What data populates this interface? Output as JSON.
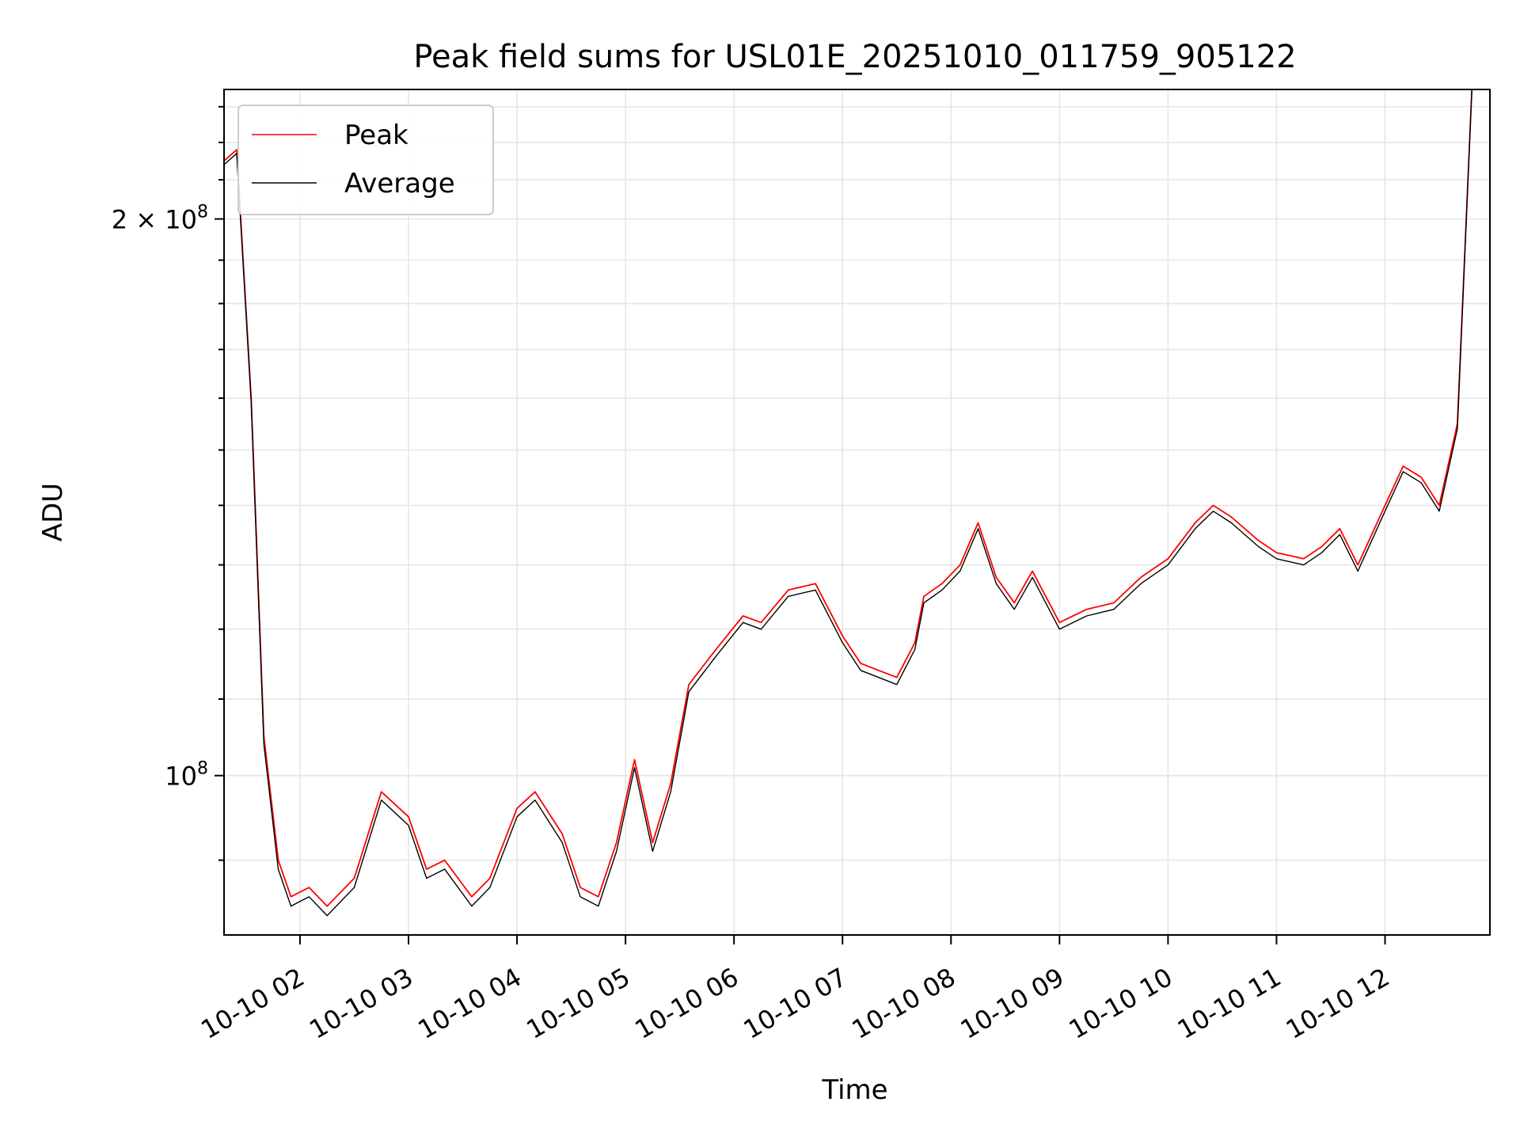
{
  "chart_data": {
    "type": "line",
    "title": "Peak field sums for USL01E_20251010_011759_905122",
    "xlabel": "Time",
    "ylabel": "ADU",
    "yscale": "log",
    "grid": true,
    "legend_placement": "top-left",
    "xlim": [
      "2025-10-10 01:18",
      "2025-10-10 12:58"
    ],
    "ylim": [
      82000000,
      235000000
    ],
    "x_ticks": [
      "10-10 02",
      "10-10 03",
      "10-10 04",
      "10-10 05",
      "10-10 06",
      "10-10 07",
      "10-10 08",
      "10-10 09",
      "10-10 10",
      "10-10 11",
      "10-10 12"
    ],
    "y_ticks": [
      {
        "value": 100000000,
        "base": "10",
        "exp": "8"
      },
      {
        "value": 200000000,
        "base": "2 × 10",
        "exp": "8"
      }
    ],
    "x": [
      "01:18",
      "01:25",
      "01:33",
      "01:40",
      "01:48",
      "01:55",
      "02:05",
      "02:15",
      "02:30",
      "02:45",
      "03:00",
      "03:10",
      "03:20",
      "03:35",
      "03:45",
      "04:00",
      "04:10",
      "04:25",
      "04:35",
      "04:45",
      "04:55",
      "05:05",
      "05:15",
      "05:25",
      "05:35",
      "05:50",
      "06:05",
      "06:15",
      "06:30",
      "06:45",
      "07:00",
      "07:10",
      "07:20",
      "07:30",
      "07:40",
      "07:45",
      "07:55",
      "08:05",
      "08:15",
      "08:25",
      "08:35",
      "08:45",
      "09:00",
      "09:15",
      "09:30",
      "09:45",
      "10:00",
      "10:15",
      "10:25",
      "10:35",
      "10:50",
      "11:00",
      "11:15",
      "11:25",
      "11:35",
      "11:45",
      "12:00",
      "12:10",
      "12:20",
      "12:30",
      "12:40",
      "12:48"
    ],
    "series": [
      {
        "name": "Peak",
        "color": "#ff0000",
        "values": [
          215000000,
          218000000,
          160000000,
          105000000,
          90000000,
          86000000,
          87000000,
          85000000,
          88000000,
          98000000,
          95000000,
          89000000,
          90000000,
          86000000,
          88000000,
          96000000,
          98000000,
          93000000,
          87000000,
          86000000,
          92000000,
          102000000,
          92000000,
          99000000,
          112000000,
          117000000,
          122000000,
          121000000,
          126000000,
          127000000,
          119000000,
          115000000,
          114000000,
          113000000,
          118000000,
          125000000,
          127000000,
          130000000,
          137000000,
          128000000,
          124000000,
          129000000,
          121000000,
          123000000,
          124000000,
          128000000,
          131000000,
          137000000,
          140000000,
          138000000,
          134000000,
          132000000,
          131000000,
          133000000,
          136000000,
          130000000,
          140000000,
          147000000,
          145000000,
          140000000,
          155000000,
          235000000
        ]
      },
      {
        "name": "Average",
        "color": "#000000",
        "values": [
          214000000,
          217000000,
          159000000,
          104000000,
          89000000,
          85000000,
          86000000,
          84000000,
          87000000,
          97000000,
          94000000,
          88000000,
          89000000,
          85000000,
          87000000,
          95000000,
          97000000,
          92000000,
          86000000,
          85000000,
          91000000,
          101000000,
          91000000,
          98000000,
          111000000,
          116000000,
          121000000,
          120000000,
          125000000,
          126000000,
          118000000,
          114000000,
          113000000,
          112000000,
          117000000,
          124000000,
          126000000,
          129000000,
          136000000,
          127000000,
          123000000,
          128000000,
          120000000,
          122000000,
          123000000,
          127000000,
          130000000,
          136000000,
          139000000,
          137000000,
          133000000,
          131000000,
          130000000,
          132000000,
          135000000,
          129000000,
          139000000,
          146000000,
          144000000,
          139000000,
          154000000,
          235000000
        ]
      }
    ]
  }
}
